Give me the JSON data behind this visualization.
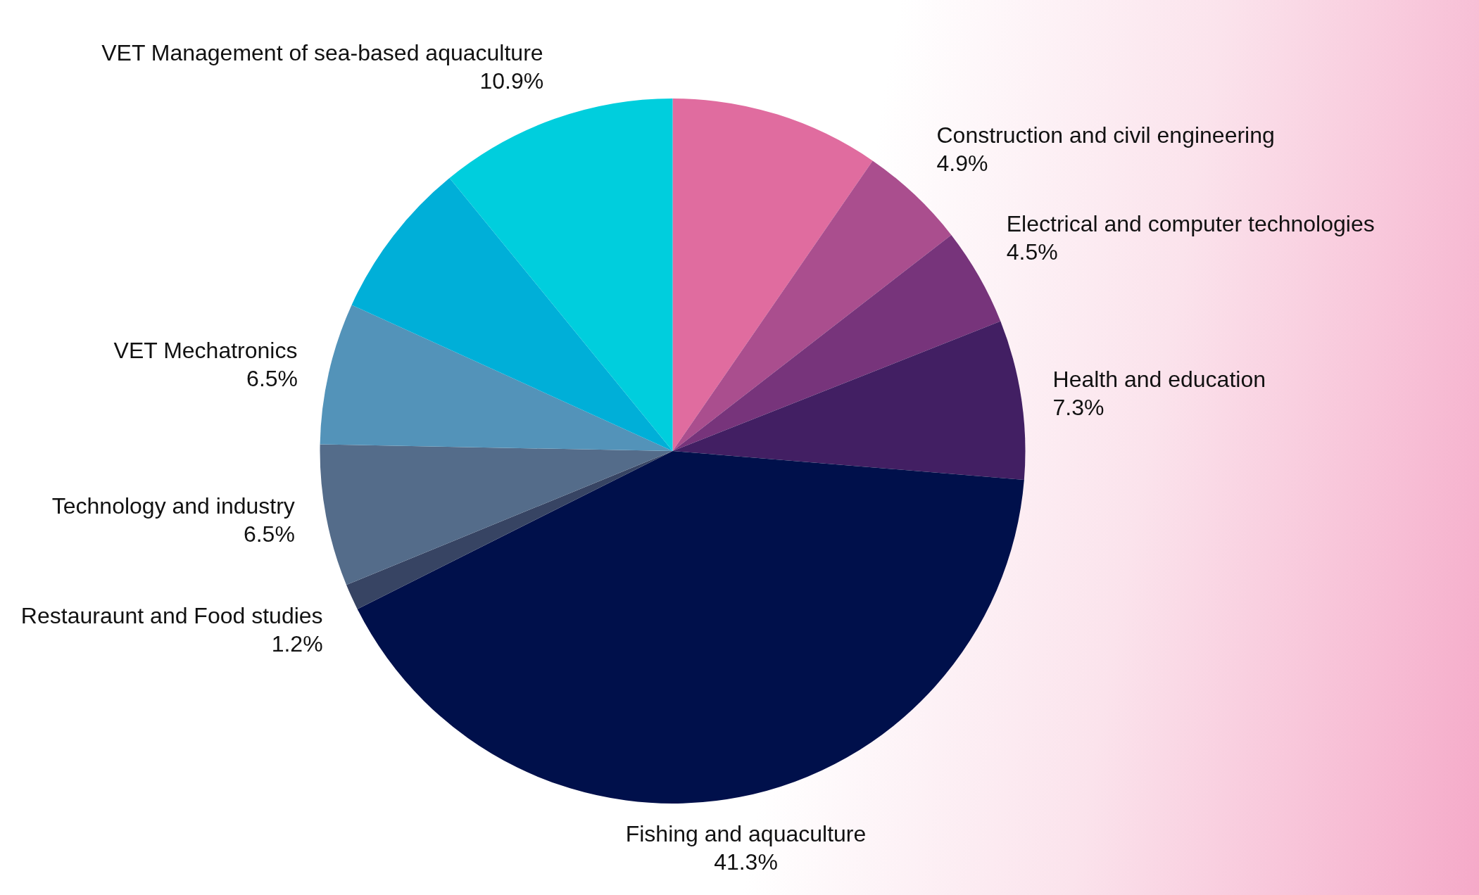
{
  "chart_data": {
    "type": "pie",
    "categories": [
      null,
      "Construction and civil engineering",
      "Electrical and computer technologies",
      "Health and education",
      "Fishing and aquaculture",
      "Restauraunt and Food studies",
      "Technology and industry",
      "VET Mechatronics",
      null,
      "VET Management of sea-based aquaculture"
    ],
    "values": [
      9.6,
      4.9,
      4.5,
      7.3,
      41.3,
      1.2,
      6.5,
      6.5,
      7.3,
      10.9
    ],
    "value_labels": [
      null,
      "4.9%",
      "4.5%",
      "7.3%",
      "41.3%",
      "1.2%",
      "6.5%",
      "6.5%",
      null,
      "10.9%"
    ],
    "colors": [
      "#e06c9f",
      "#aa4e8e",
      "#77347b",
      "#421f63",
      "#00104b",
      "#374463",
      "#546c8a",
      "#5393b9",
      "#00afd8",
      "#00cedd"
    ],
    "legend": false
  }
}
